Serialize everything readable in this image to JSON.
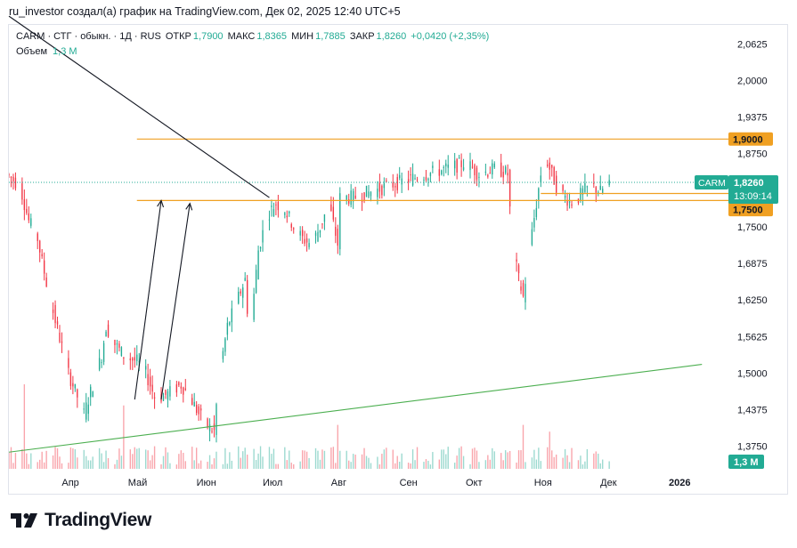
{
  "header": {
    "attribution": "ru_investor создал(а) график на TradingView.com, Дек 02, 2025 12:40 UTC+5"
  },
  "legend": {
    "symbol": "CARM · СТГ · обыкн. · 1Д · RUS",
    "open_label": "ОТКР",
    "open_value": "1,7900",
    "high_label": "МАКС",
    "high_value": "1,8365",
    "low_label": "МИН",
    "low_value": "1,7885",
    "close_label": "ЗАКР",
    "close_value": "1,8260",
    "change": "+0,0420 (+2,35%)",
    "volume_label": "Объем",
    "volume_value": "1,3 M"
  },
  "footer": {
    "brand": "TradingView"
  },
  "colors": {
    "up": "#22ab94",
    "down": "#f23645",
    "level": "#f0a022",
    "trend_support": "#4caf50",
    "trend_resistance": "#131722",
    "axis_text": "#131722",
    "grid": "#f0f3fa"
  },
  "chart_data": {
    "type": "candlestick",
    "symbol": "CARM",
    "timeframe": "1Д",
    "y_ticks": [
      "2,0625",
      "2,0000",
      "1,9375",
      "1,8750",
      "1,8125",
      "1,7500",
      "1,6875",
      "1,6250",
      "1,5625",
      "1,5000",
      "1,4375",
      "1,3750"
    ],
    "y_tick_values": [
      2.0625,
      2.0,
      1.9375,
      1.875,
      1.8125,
      1.75,
      1.6875,
      1.625,
      1.5625,
      1.5,
      1.4375,
      1.375
    ],
    "ylim": [
      1.335,
      2.095
    ],
    "x_ticks": [
      "Апр",
      "Май",
      "Июн",
      "Июл",
      "Авг",
      "Сен",
      "Окт",
      "Ноя",
      "Дек",
      "2026"
    ],
    "x_range": [
      "2025-03-04",
      "2026-01-24"
    ],
    "x_tick_dates": [
      "2025-04-01",
      "2025-05-01",
      "2025-06-01",
      "2025-07-01",
      "2025-08-01",
      "2025-09-01",
      "2025-10-01",
      "2025-11-01",
      "2025-12-01",
      "2026-01-01"
    ],
    "last_price_label": "1,8260",
    "last_price": 1.826,
    "last_label_symbol": "CARM",
    "countdown": "13:09:14",
    "levels": [
      {
        "label": "1,9000",
        "value": 1.9,
        "start": "2025-05-01"
      },
      {
        "label": "1,8070",
        "value": 1.807,
        "start": "2025-10-31"
      },
      {
        "label": "1,7950",
        "value": 1.795,
        "start": "2025-05-01"
      },
      {
        "label": "1,7500",
        "value": 1.75
      }
    ],
    "volume_label": "1,3 M",
    "price_path": [
      [
        "2025-03-04",
        1.84
      ],
      [
        "2025-03-10",
        1.82
      ],
      [
        "2025-03-14",
        1.76
      ],
      [
        "2025-03-18",
        1.73
      ],
      [
        "2025-03-20",
        1.69
      ],
      [
        "2025-03-24",
        1.62
      ],
      [
        "2025-03-28",
        1.56
      ],
      [
        "2025-04-01",
        1.5
      ],
      [
        "2025-04-05",
        1.46
      ],
      [
        "2025-04-08",
        1.43
      ],
      [
        "2025-04-12",
        1.48
      ],
      [
        "2025-04-16",
        1.53
      ],
      [
        "2025-04-18",
        1.58
      ],
      [
        "2025-04-22",
        1.55
      ],
      [
        "2025-04-26",
        1.53
      ],
      [
        "2025-05-02",
        1.52
      ],
      [
        "2025-05-06",
        1.5
      ],
      [
        "2025-05-10",
        1.46
      ],
      [
        "2025-05-14",
        1.46
      ],
      [
        "2025-05-18",
        1.47
      ],
      [
        "2025-05-22",
        1.48
      ],
      [
        "2025-05-26",
        1.46
      ],
      [
        "2025-05-30",
        1.43
      ],
      [
        "2025-06-03",
        1.41
      ],
      [
        "2025-06-06",
        1.4
      ],
      [
        "2025-06-08",
        1.49
      ],
      [
        "2025-06-12",
        1.58
      ],
      [
        "2025-06-16",
        1.62
      ],
      [
        "2025-06-20",
        1.66
      ],
      [
        "2025-06-22",
        1.56
      ],
      [
        "2025-06-26",
        1.71
      ],
      [
        "2025-06-30",
        1.77
      ],
      [
        "2025-07-04",
        1.79
      ],
      [
        "2025-07-08",
        1.78
      ],
      [
        "2025-07-12",
        1.75
      ],
      [
        "2025-07-16",
        1.73
      ],
      [
        "2025-07-20",
        1.72
      ],
      [
        "2025-07-24",
        1.75
      ],
      [
        "2025-07-28",
        1.79
      ],
      [
        "2025-08-01",
        1.72
      ],
      [
        "2025-08-02",
        1.8
      ],
      [
        "2025-08-08",
        1.8
      ],
      [
        "2025-08-16",
        1.81
      ],
      [
        "2025-08-24",
        1.82
      ],
      [
        "2025-09-01",
        1.83
      ],
      [
        "2025-09-10",
        1.84
      ],
      [
        "2025-09-20",
        1.85
      ],
      [
        "2025-09-28",
        1.86
      ],
      [
        "2025-10-04",
        1.84
      ],
      [
        "2025-10-12",
        1.85
      ],
      [
        "2025-10-17",
        1.84
      ],
      [
        "2025-10-19",
        1.72
      ],
      [
        "2025-10-22",
        1.66
      ],
      [
        "2025-10-24",
        1.63
      ],
      [
        "2025-10-28",
        1.74
      ],
      [
        "2025-11-01",
        1.84
      ],
      [
        "2025-11-04",
        1.86
      ],
      [
        "2025-11-08",
        1.82
      ],
      [
        "2025-11-12",
        1.8
      ],
      [
        "2025-11-16",
        1.79
      ],
      [
        "2025-11-20",
        1.81
      ],
      [
        "2025-11-24",
        1.82
      ],
      [
        "2025-11-28",
        1.81
      ],
      [
        "2025-12-02",
        1.826
      ]
    ],
    "support_line": {
      "from": [
        "2025-03-04",
        1.365
      ],
      "to": [
        "2026-01-12",
        1.515
      ]
    },
    "resistance_line": {
      "from": [
        "2025-03-04",
        2.11
      ],
      "to": [
        "2025-06-30",
        1.8
      ]
    },
    "arrows": [
      {
        "from": [
          "2025-04-30",
          1.455
        ],
        "to": [
          "2025-05-12",
          1.795
        ]
      },
      {
        "from": [
          "2025-05-12",
          1.455
        ],
        "to": [
          "2025-05-25",
          1.79
        ]
      }
    ],
    "volume_spikes": [
      {
        "date": "2025-03-11",
        "value": 1.0
      },
      {
        "date": "2025-04-25",
        "value": 0.75
      },
      {
        "date": "2025-07-31",
        "value": 0.52
      },
      {
        "date": "2025-10-18",
        "value": 0.65
      },
      {
        "date": "2025-10-23",
        "value": 0.52
      },
      {
        "date": "2025-11-04",
        "value": 0.44
      }
    ]
  }
}
